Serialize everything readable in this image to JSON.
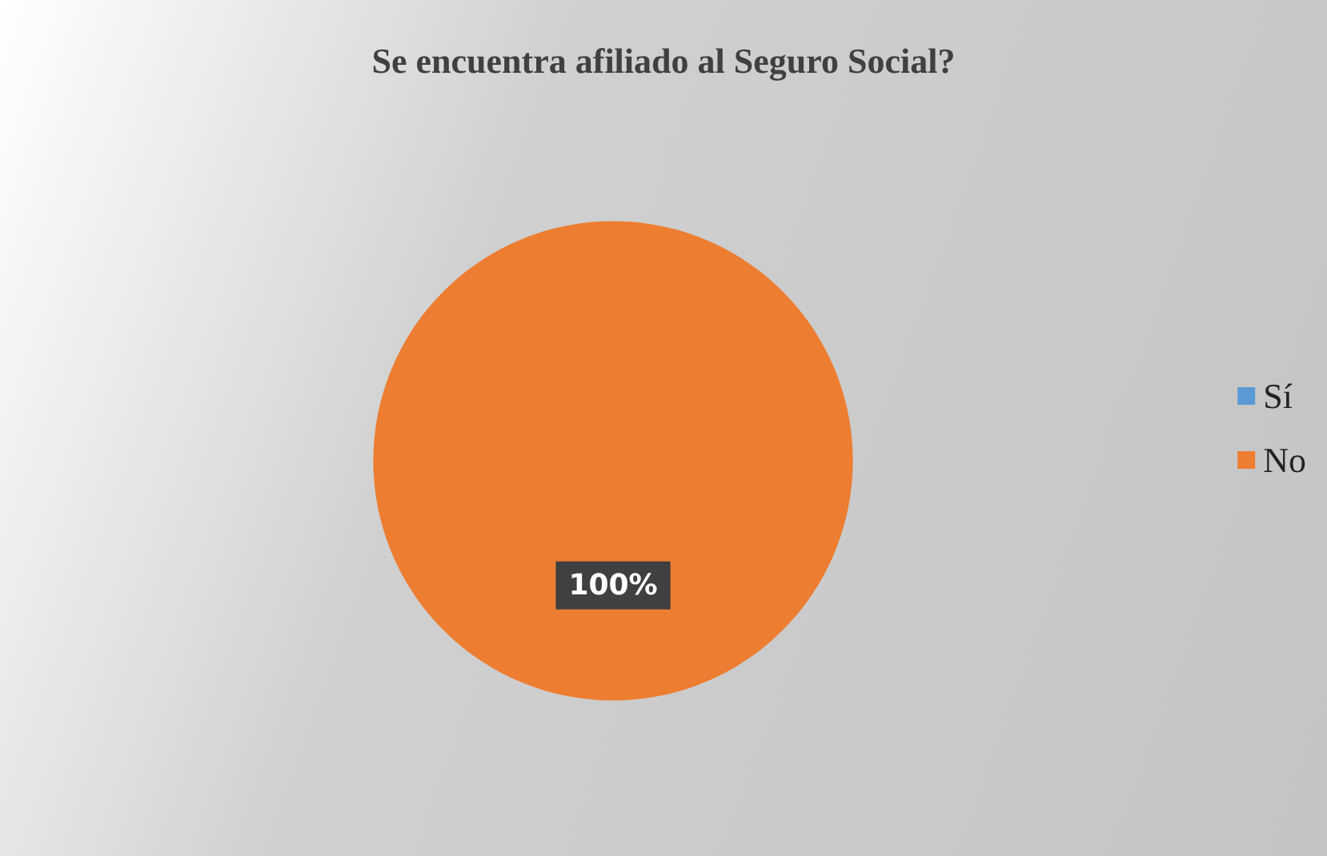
{
  "chart_data": {
    "type": "pie",
    "title": "Se encuentra afiliado al Seguro Social?",
    "categories": [
      "Sí",
      "No"
    ],
    "values": [
      0,
      100
    ],
    "colors": [
      "#5b9bd5",
      "#ed7d31"
    ],
    "value_labels": [
      null,
      "100%"
    ],
    "legend": "right"
  }
}
